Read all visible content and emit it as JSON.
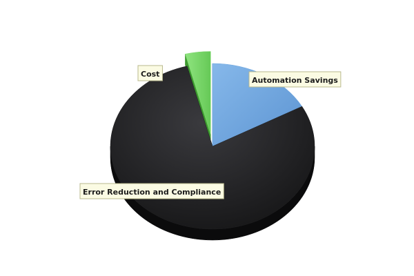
{
  "chart_data": {
    "type": "pie",
    "title": "",
    "legend": "none",
    "slices": [
      {
        "label": "Automation Savings",
        "value": 17,
        "color": "#6fa8e0",
        "dark_color": "#2f66a8",
        "exploded": false
      },
      {
        "label": "Error Reduction and Compliance",
        "value": 79,
        "color": "#1e1e20",
        "dark_color": "#0b0b0c",
        "exploded": false
      },
      {
        "label": "Cost",
        "value": 4,
        "color": "#7ed96e",
        "dark_color": "#3d9a2f",
        "exploded": true
      }
    ]
  }
}
